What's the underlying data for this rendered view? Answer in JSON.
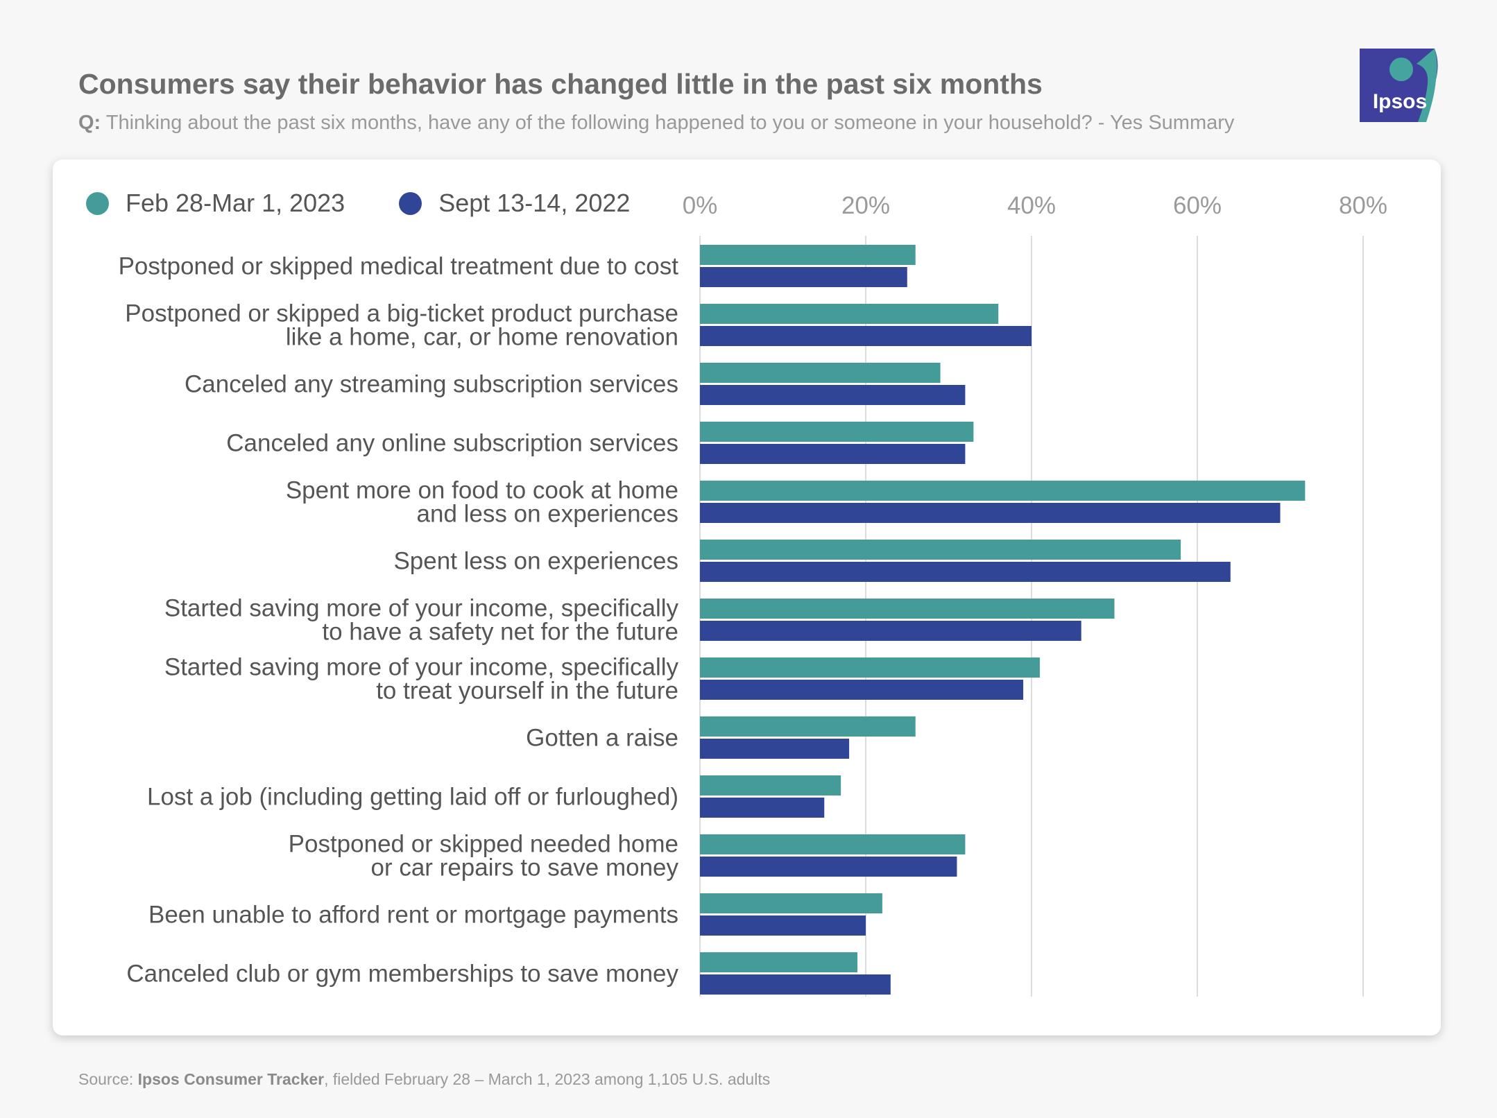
{
  "header": {
    "title": "Consumers say their behavior has changed little in the past six months",
    "question_prefix": "Q:",
    "question_text": "Thinking about the past six months, have any of the following happened to you or someone in your household? - Yes Summary"
  },
  "logo": {
    "text": "Ipsos",
    "icon": "ipsos-logo-icon",
    "color": "#3f3f9d",
    "accent": "#45a59e"
  },
  "source": {
    "prefix": "Source:",
    "name": "Ipsos Consumer Tracker",
    "suffix": ", fielded February 28 – March 1, 2023 among 1,105 U.S. adults"
  },
  "colors": {
    "series_1": "#459b97",
    "series_2": "#314596"
  },
  "chart_data": {
    "type": "bar",
    "orientation": "horizontal",
    "title": "Consumers say their behavior has changed little in the past six months",
    "xlabel": "",
    "ylabel": "",
    "xlim": [
      0,
      80
    ],
    "x_ticks": [
      "0%",
      "20%",
      "40%",
      "60%",
      "80%"
    ],
    "grid": true,
    "legend_position": "top-left",
    "categories": [
      [
        "Postponed or skipped medical treatment due to cost"
      ],
      [
        "Postponed or skipped a big-ticket product purchase",
        "like a home, car, or home renovation"
      ],
      [
        "Canceled any streaming subscription services"
      ],
      [
        "Canceled any online subscription services"
      ],
      [
        "Spent more on food to cook at home",
        "and less on experiences"
      ],
      [
        "Spent less on experiences"
      ],
      [
        "Started saving more of your income, specifically",
        "to have a safety net for the future"
      ],
      [
        "Started saving more of your income, specifically",
        "to treat yourself in the future"
      ],
      [
        "Gotten a raise"
      ],
      [
        "Lost a job (including getting laid off or furloughed)"
      ],
      [
        "Postponed or skipped needed home",
        "or car repairs to save money"
      ],
      [
        "Been unable to afford rent or mortgage payments"
      ],
      [
        "Canceled club or gym memberships to save money"
      ]
    ],
    "series": [
      {
        "name": "Feb 28-Mar 1, 2023",
        "color": "#459b97",
        "values": [
          26,
          36,
          29,
          33,
          73,
          58,
          50,
          41,
          26,
          17,
          32,
          22,
          19
        ]
      },
      {
        "name": "Sept 13-14, 2022",
        "color": "#314596",
        "values": [
          25,
          40,
          32,
          32,
          70,
          64,
          46,
          39,
          18,
          15,
          31,
          20,
          23
        ]
      }
    ]
  }
}
